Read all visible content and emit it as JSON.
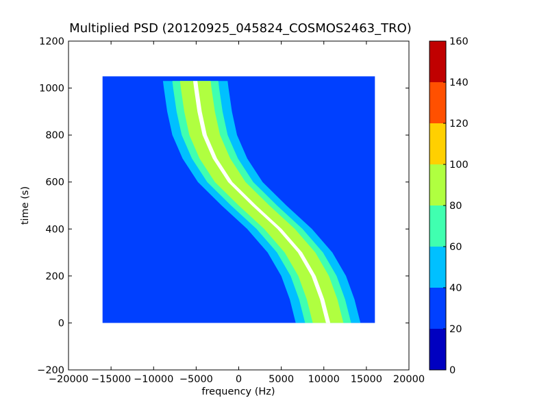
{
  "chart_data": {
    "type": "heatmap",
    "title": "Multiplied PSD (20120925_045824_COSMOS2463_TRO)",
    "xlabel": "frequency (Hz)",
    "ylabel": "time (s)",
    "xlim": [
      -20000,
      20000
    ],
    "ylim": [
      -200,
      1200
    ],
    "xticks": [
      -20000,
      -15000,
      -10000,
      -5000,
      0,
      5000,
      10000,
      15000,
      20000
    ],
    "xtick_labels": [
      "−20000",
      "−15000",
      "−10000",
      "−5000",
      "0",
      "5000",
      "10000",
      "15000",
      "20000"
    ],
    "yticks": [
      -200,
      0,
      200,
      400,
      600,
      800,
      1000,
      1200
    ],
    "ytick_labels": [
      "−200",
      "0",
      "200",
      "400",
      "600",
      "800",
      "1000",
      "1200"
    ],
    "data_extent": {
      "x": [
        -16000,
        16000
      ],
      "y": [
        0,
        1050
      ]
    },
    "background_level": 30,
    "signal_track": {
      "time": [
        0,
        100,
        200,
        300,
        400,
        500,
        600,
        700,
        800,
        900,
        1000,
        1030
      ],
      "frequency": [
        10500,
        9800,
        8800,
        7200,
        4800,
        1800,
        -1000,
        -2800,
        -4000,
        -4600,
        -5000,
        -5100
      ]
    },
    "band_levels": [
      {
        "halfwidth": 3800,
        "level": 50
      },
      {
        "halfwidth": 2700,
        "level": 70
      },
      {
        "halfwidth": 1800,
        "level": 90
      },
      {
        "halfwidth": 250,
        "level": 160
      }
    ],
    "colorbar": {
      "min": 0,
      "max": 160,
      "ticks": [
        0,
        20,
        40,
        60,
        80,
        100,
        120,
        140,
        160
      ],
      "tick_labels": [
        "0",
        "20",
        "40",
        "60",
        "80",
        "100",
        "120",
        "140",
        "160"
      ],
      "levels": [
        {
          "from": 0,
          "to": 20,
          "color": "#0000c0"
        },
        {
          "from": 20,
          "to": 40,
          "color": "#0040ff"
        },
        {
          "from": 40,
          "to": 60,
          "color": "#00c0ff"
        },
        {
          "from": 60,
          "to": 80,
          "color": "#40ffb0"
        },
        {
          "from": 80,
          "to": 100,
          "color": "#b0ff40"
        },
        {
          "from": 100,
          "to": 120,
          "color": "#ffd000"
        },
        {
          "from": 120,
          "to": 140,
          "color": "#ff5000"
        },
        {
          "from": 140,
          "to": 160,
          "color": "#c00000"
        }
      ]
    }
  }
}
